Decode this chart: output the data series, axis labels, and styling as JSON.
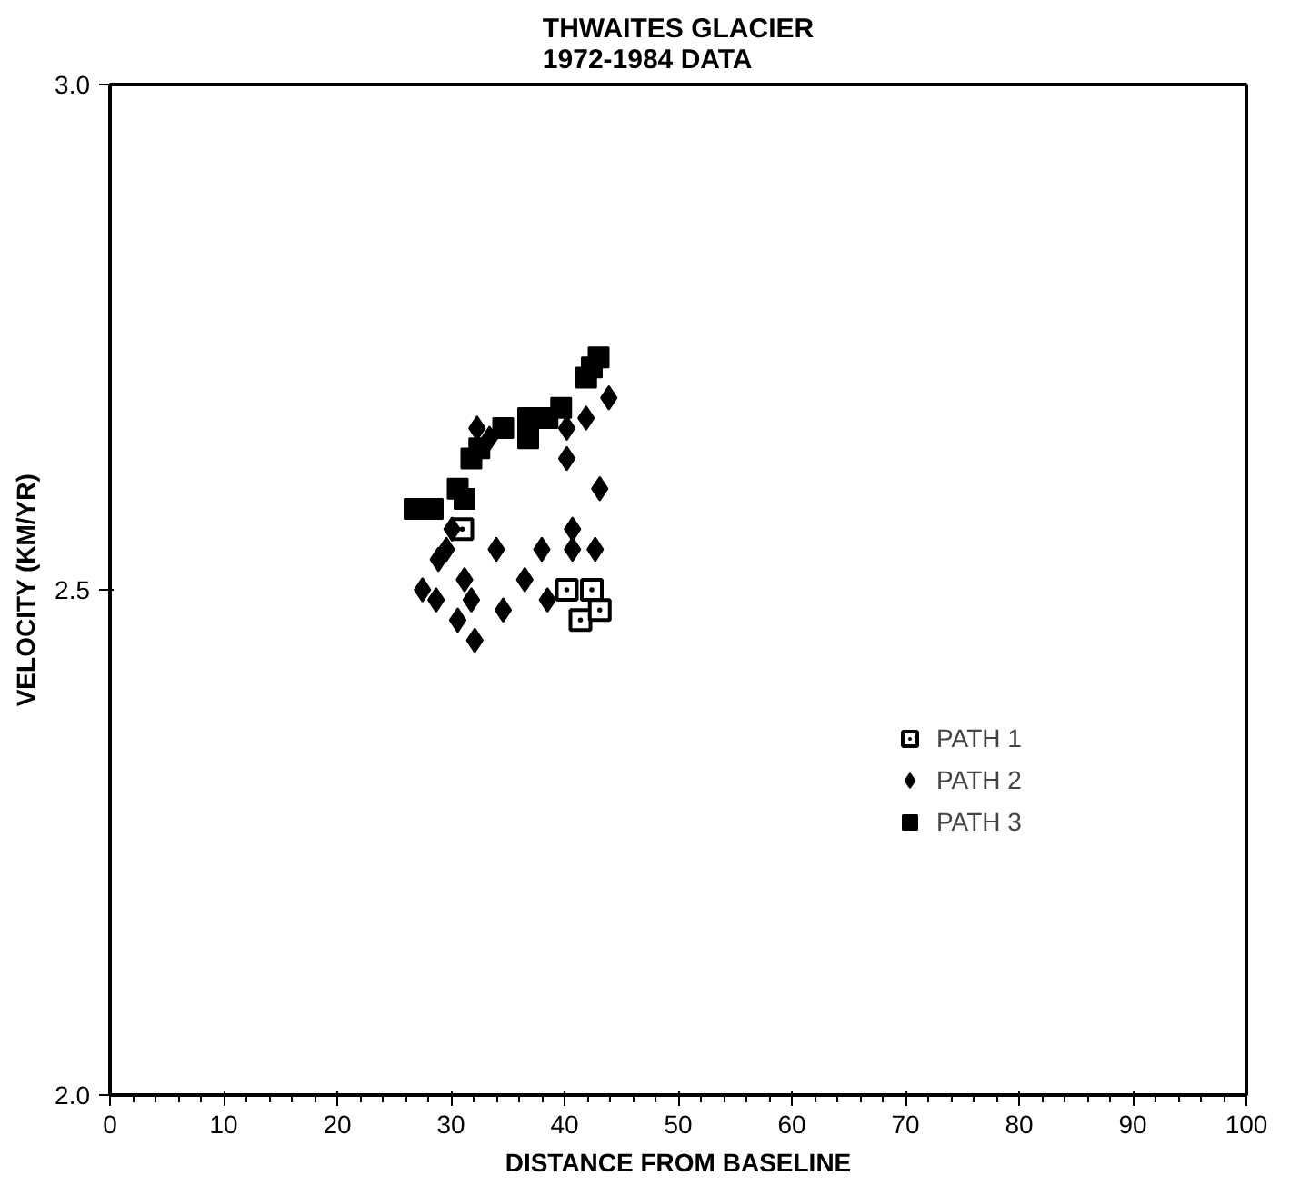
{
  "chart_data": {
    "type": "scatter",
    "title": "THWAITES GLACIER\n1972-1984 DATA",
    "xlabel": "DISTANCE FROM BASELINE",
    "ylabel": "VELOCITY (KM/YR)",
    "xlim": [
      0,
      100
    ],
    "xticks": [
      0,
      10,
      20,
      30,
      40,
      50,
      60,
      70,
      80,
      90,
      100
    ],
    "ylim": [
      2.0,
      3.0
    ],
    "yticks": [
      {
        "value": 2.0,
        "label": "2.0"
      },
      {
        "value": 2.5,
        "label": "2.5"
      },
      {
        "value": 3.0,
        "label": "3.0"
      }
    ],
    "grid": false,
    "legend": "right",
    "series": [
      {
        "name": "PATH 1",
        "color": "#000000",
        "marker": "square_dot",
        "x": [
          42.4,
          41.4,
          43.1,
          40.2,
          31.0
        ],
        "values": [
          2.5,
          2.47,
          2.48,
          2.5,
          2.56
        ]
      },
      {
        "name": "PATH 2",
        "color": "#000000",
        "marker": "diamond",
        "x": [
          27.5,
          28.9,
          28.7,
          31.2,
          31.8,
          30.6,
          32.1,
          34.0,
          34.6,
          36.5,
          38.0,
          38.5,
          40.7,
          40.7,
          42.7,
          40.2,
          43.1,
          41.9,
          43.9,
          33.4,
          32.3,
          35.1,
          37.3,
          39.0,
          40.2,
          36.3,
          30.1,
          29.6
        ],
        "values": [
          2.5,
          2.53,
          2.49,
          2.51,
          2.49,
          2.47,
          2.45,
          2.54,
          2.48,
          2.51,
          2.54,
          2.49,
          2.56,
          2.54,
          2.54,
          2.63,
          2.6,
          2.67,
          2.69,
          2.65,
          2.66,
          null,
          null,
          null,
          2.66,
          null,
          2.56,
          2.54
        ]
      },
      {
        "name": "PATH 3",
        "color": "#000000",
        "marker": "square",
        "x": [
          26.8,
          28.4,
          30.6,
          31.2,
          31.8,
          32.5,
          34.6,
          36.8,
          36.8,
          38.5,
          39.7,
          41.9,
          42.4,
          43.0
        ],
        "values": [
          2.58,
          2.58,
          2.6,
          2.59,
          2.63,
          2.64,
          2.66,
          2.67,
          2.65,
          2.67,
          2.68,
          2.71,
          2.72,
          2.73
        ]
      }
    ]
  }
}
